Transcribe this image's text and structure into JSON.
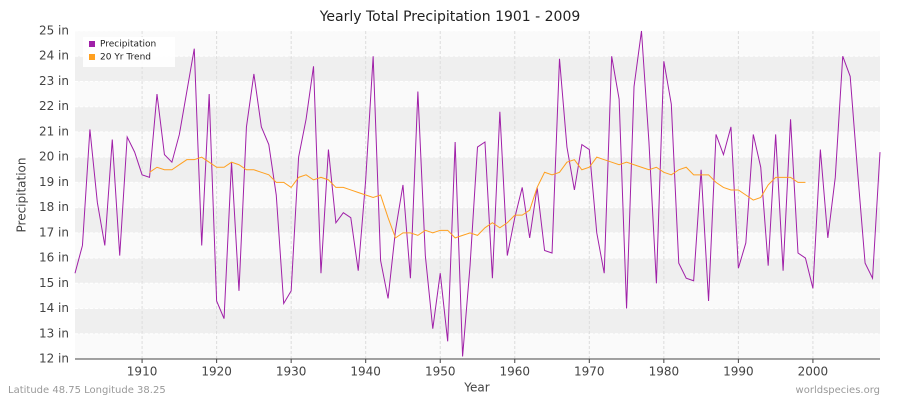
{
  "chart_data": {
    "type": "line",
    "title": "Yearly Total Precipitation 1901 - 2009",
    "x_label": "Year",
    "y_label": "Precipitation",
    "footer_left": "Latitude 48.75 Longitude 38.25",
    "footer_right": "worldspecies.org",
    "legend_position": "top-left",
    "grid": true,
    "x": [
      1901,
      1902,
      1903,
      1904,
      1905,
      1906,
      1907,
      1908,
      1909,
      1910,
      1911,
      1912,
      1913,
      1914,
      1915,
      1916,
      1917,
      1918,
      1919,
      1920,
      1921,
      1922,
      1923,
      1924,
      1925,
      1926,
      1927,
      1928,
      1929,
      1930,
      1931,
      1932,
      1933,
      1934,
      1935,
      1936,
      1937,
      1938,
      1939,
      1940,
      1941,
      1942,
      1943,
      1944,
      1945,
      1946,
      1947,
      1948,
      1949,
      1950,
      1951,
      1952,
      1953,
      1954,
      1955,
      1956,
      1957,
      1958,
      1959,
      1960,
      1961,
      1962,
      1963,
      1964,
      1965,
      1966,
      1967,
      1968,
      1969,
      1970,
      1971,
      1972,
      1973,
      1974,
      1975,
      1976,
      1977,
      1978,
      1979,
      1980,
      1981,
      1982,
      1983,
      1984,
      1985,
      1986,
      1987,
      1988,
      1989,
      1990,
      1991,
      1992,
      1993,
      1994,
      1995,
      1996,
      1997,
      1998,
      1999,
      2000,
      2001,
      2002,
      2003,
      2004,
      2005,
      2006,
      2007,
      2008,
      2009
    ],
    "series": [
      {
        "name": "Precipitation",
        "color": "#a020a8",
        "values": [
          15.4,
          16.5,
          21.1,
          18.2,
          16.5,
          20.7,
          16.1,
          20.8,
          20.2,
          19.3,
          19.2,
          22.5,
          20.1,
          19.8,
          20.9,
          22.6,
          24.3,
          16.5,
          22.5,
          14.3,
          13.6,
          19.8,
          14.7,
          21.2,
          23.3,
          21.2,
          20.5,
          18.5,
          14.2,
          14.7,
          20.0,
          21.5,
          23.6,
          15.4,
          20.3,
          17.4,
          17.8,
          17.6,
          15.5,
          19.1,
          24.0,
          15.9,
          14.4,
          17.1,
          18.9,
          15.2,
          22.6,
          16.1,
          13.2,
          15.4,
          12.7,
          20.6,
          12.1,
          15.7,
          20.4,
          20.6,
          15.2,
          21.8,
          16.1,
          17.6,
          18.8,
          16.8,
          18.8,
          16.3,
          16.2,
          23.9,
          20.4,
          18.7,
          20.5,
          20.3,
          17.0,
          15.4,
          24.0,
          22.3,
          14.0,
          22.8,
          25.0,
          20.6,
          15.0,
          23.8,
          22.1,
          15.8,
          15.2,
          15.1,
          19.5,
          14.3,
          20.9,
          20.1,
          21.2,
          15.6,
          16.6,
          20.9,
          19.6,
          15.7,
          20.9,
          15.5,
          21.5,
          16.2,
          16.0,
          14.8,
          20.3,
          16.8,
          19.2,
          24.0,
          23.2,
          19.4,
          15.8,
          15.2,
          20.2
        ]
      },
      {
        "name": "20 Yr Trend",
        "color": "#ffa020",
        "values": [
          null,
          null,
          null,
          null,
          null,
          null,
          null,
          null,
          null,
          null,
          19.4,
          19.6,
          19.5,
          19.5,
          19.7,
          19.9,
          19.9,
          20.0,
          19.8,
          19.6,
          19.6,
          19.8,
          19.7,
          19.5,
          19.5,
          19.4,
          19.3,
          19.0,
          19.0,
          18.8,
          19.2,
          19.3,
          19.1,
          19.2,
          19.1,
          18.8,
          18.8,
          18.7,
          18.6,
          18.5,
          18.4,
          18.5,
          17.6,
          16.8,
          17.0,
          17.0,
          16.9,
          17.1,
          17.0,
          17.1,
          17.1,
          16.8,
          16.9,
          17.0,
          16.9,
          17.2,
          17.4,
          17.2,
          17.4,
          17.7,
          17.7,
          17.9,
          18.8,
          19.4,
          19.3,
          19.4,
          19.8,
          19.9,
          19.5,
          19.6,
          20.0,
          19.9,
          19.8,
          19.7,
          19.8,
          19.7,
          19.6,
          19.5,
          19.6,
          19.4,
          19.3,
          19.5,
          19.6,
          19.3,
          19.3,
          19.3,
          19.0,
          18.8,
          18.7,
          18.7,
          18.5,
          18.3,
          18.4,
          18.9,
          19.2,
          19.2,
          19.2,
          19.0,
          19.0,
          null,
          null,
          null,
          null,
          null,
          null,
          null,
          null,
          null,
          null
        ]
      }
    ],
    "xlim": [
      1901,
      2009
    ],
    "xticks": [
      1910,
      1920,
      1930,
      1940,
      1950,
      1960,
      1970,
      1980,
      1990,
      2000
    ],
    "ylim": [
      12,
      25
    ],
    "yticks": [
      {
        "value": 12,
        "label": "12 in"
      },
      {
        "value": 13,
        "label": "13 in"
      },
      {
        "value": 14,
        "label": "14 in"
      },
      {
        "value": 15,
        "label": "15 in"
      },
      {
        "value": 16,
        "label": "16 in"
      },
      {
        "value": 17,
        "label": "17 in"
      },
      {
        "value": 18,
        "label": "18 in"
      },
      {
        "value": 19,
        "label": "19 in"
      },
      {
        "value": 20,
        "label": "20 in"
      },
      {
        "value": 21,
        "label": "21 in"
      },
      {
        "value": 22,
        "label": "22 in"
      },
      {
        "value": 23,
        "label": "23 in"
      },
      {
        "value": 24,
        "label": "24 in"
      },
      {
        "value": 25,
        "label": "25 in"
      }
    ]
  }
}
